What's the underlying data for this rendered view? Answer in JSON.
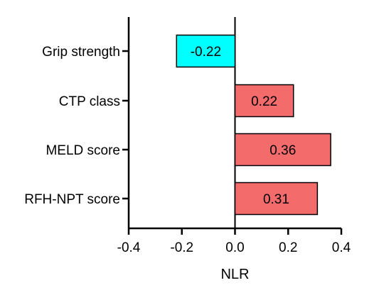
{
  "chart_data": {
    "type": "bar",
    "orientation": "horizontal",
    "categories": [
      "Grip strength",
      "CTP class",
      "MELD score",
      "RFH-NPT score"
    ],
    "values": [
      -0.22,
      0.22,
      0.36,
      0.31
    ],
    "value_labels": [
      "-0.22",
      "0.22",
      "0.36",
      "0.31"
    ],
    "xlabel": "NLR",
    "ylabel": "",
    "title": "",
    "xlim": [
      -0.4,
      0.4
    ],
    "xticks": [
      -0.4,
      -0.2,
      0.0,
      0.2,
      0.4
    ],
    "xtick_labels": [
      "-0.4",
      "-0.2",
      "0.0",
      "0.2",
      "0.4"
    ],
    "grid": false,
    "colors": {
      "negative": "#00ffff",
      "positive": "#f36b6b",
      "edge": "#000000"
    }
  }
}
